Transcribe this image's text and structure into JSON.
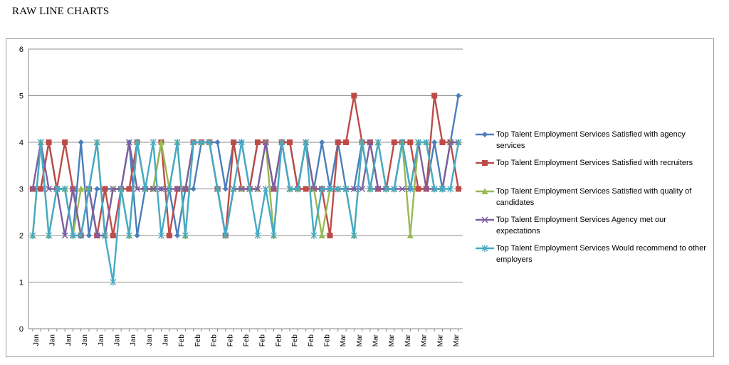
{
  "page": {
    "title": "RAW LINE CHARTS"
  },
  "colors": {
    "series": [
      "#4a7ebb",
      "#be4b48",
      "#98b954",
      "#7d60a0",
      "#46aac5"
    ],
    "grid": "#8c8c8c",
    "axis": "#868686"
  },
  "chart_data": {
    "type": "line",
    "title": "",
    "xlabel": "",
    "ylabel": "",
    "ylim": [
      0,
      6
    ],
    "yticks": [
      0,
      1,
      2,
      3,
      4,
      5,
      6
    ],
    "grid": "horizontal",
    "legend_position": "right",
    "x_tick_labels": [
      "Jan",
      "Jan",
      "Jan",
      "Jan",
      "Jan",
      "Jan",
      "Jan",
      "Jan",
      "Jan",
      "Feb",
      "Feb",
      "Feb",
      "Feb",
      "Feb",
      "Feb",
      "Feb",
      "Feb",
      "Feb",
      "Feb",
      "Mar",
      "Mar",
      "Mar",
      "Mar",
      "Mar",
      "Mar",
      "Mar",
      "Mar"
    ],
    "points_per_series": 54,
    "series": [
      {
        "name": "Top Talent Employment Services Satisfied with agency services",
        "marker": "diamond",
        "values": [
          3,
          3,
          4,
          3,
          3,
          2,
          4,
          2,
          3,
          3,
          3,
          3,
          4,
          2,
          3,
          3,
          3,
          3,
          2,
          3,
          3,
          4,
          4,
          4,
          3,
          4,
          4,
          3,
          4,
          4,
          3,
          4,
          4,
          3,
          4,
          3,
          4,
          3,
          4,
          3,
          3,
          4,
          3,
          3,
          3,
          3,
          4,
          3,
          3,
          3,
          4,
          3,
          4,
          5
        ]
      },
      {
        "name": "Top Talent Employment Services Satisfied with recruiters",
        "marker": "square",
        "values": [
          3,
          3,
          4,
          3,
          4,
          3,
          2,
          3,
          2,
          3,
          2,
          3,
          3,
          4,
          3,
          3,
          4,
          2,
          3,
          3,
          4,
          4,
          4,
          3,
          2,
          4,
          3,
          3,
          4,
          4,
          3,
          4,
          4,
          3,
          3,
          3,
          3,
          2,
          4,
          4,
          5,
          4,
          4,
          3,
          3,
          4,
          4,
          4,
          3,
          3,
          5,
          4,
          4,
          3
        ]
      },
      {
        "name": "Top Talent Employment Services Satisfied with quality of candidates",
        "marker": "triangle",
        "values": [
          2,
          4,
          2,
          3,
          3,
          2,
          3,
          3,
          4,
          2,
          3,
          3,
          2,
          4,
          3,
          3,
          4,
          3,
          4,
          2,
          4,
          4,
          4,
          3,
          2,
          3,
          3,
          3,
          3,
          4,
          2,
          4,
          3,
          3,
          4,
          3,
          2,
          3,
          3,
          3,
          2,
          4,
          3,
          4,
          3,
          3,
          4,
          2,
          4,
          4,
          3,
          3,
          4,
          4
        ]
      },
      {
        "name": "Top Talent Employment Services Agency met our expectations",
        "marker": "x",
        "values": [
          3,
          4,
          3,
          3,
          2,
          3,
          2,
          3,
          2,
          2,
          3,
          3,
          4,
          3,
          3,
          3,
          3,
          3,
          3,
          3,
          4,
          4,
          4,
          3,
          2,
          3,
          3,
          3,
          3,
          4,
          3,
          4,
          3,
          3,
          4,
          3,
          3,
          3,
          3,
          3,
          3,
          3,
          4,
          3,
          3,
          3,
          3,
          3,
          4,
          3,
          3,
          3,
          4,
          4
        ]
      },
      {
        "name": "Top Talent Employment Services Would recommend to other employers",
        "marker": "star",
        "values": [
          2,
          4,
          2,
          3,
          3,
          2,
          2,
          3,
          4,
          2,
          1,
          3,
          2,
          4,
          3,
          4,
          2,
          3,
          4,
          2,
          4,
          4,
          4,
          3,
          2,
          3,
          4,
          3,
          2,
          3,
          2,
          4,
          3,
          3,
          4,
          2,
          3,
          3,
          3,
          3,
          2,
          4,
          3,
          4,
          3,
          3,
          4,
          3,
          4,
          4,
          3,
          3,
          3,
          4
        ]
      }
    ]
  },
  "legend": [
    {
      "label": "Top Talent Employment Services Satisfied with agency services"
    },
    {
      "label": "Top Talent Employment Services Satisfied with recruiters"
    },
    {
      "label": "Top Talent Employment Services Satisfied with quality of candidates"
    },
    {
      "label": "Top Talent Employment Services Agency met our expectations"
    },
    {
      "label": "Top Talent Employment Services Would recommend to other employers"
    }
  ]
}
